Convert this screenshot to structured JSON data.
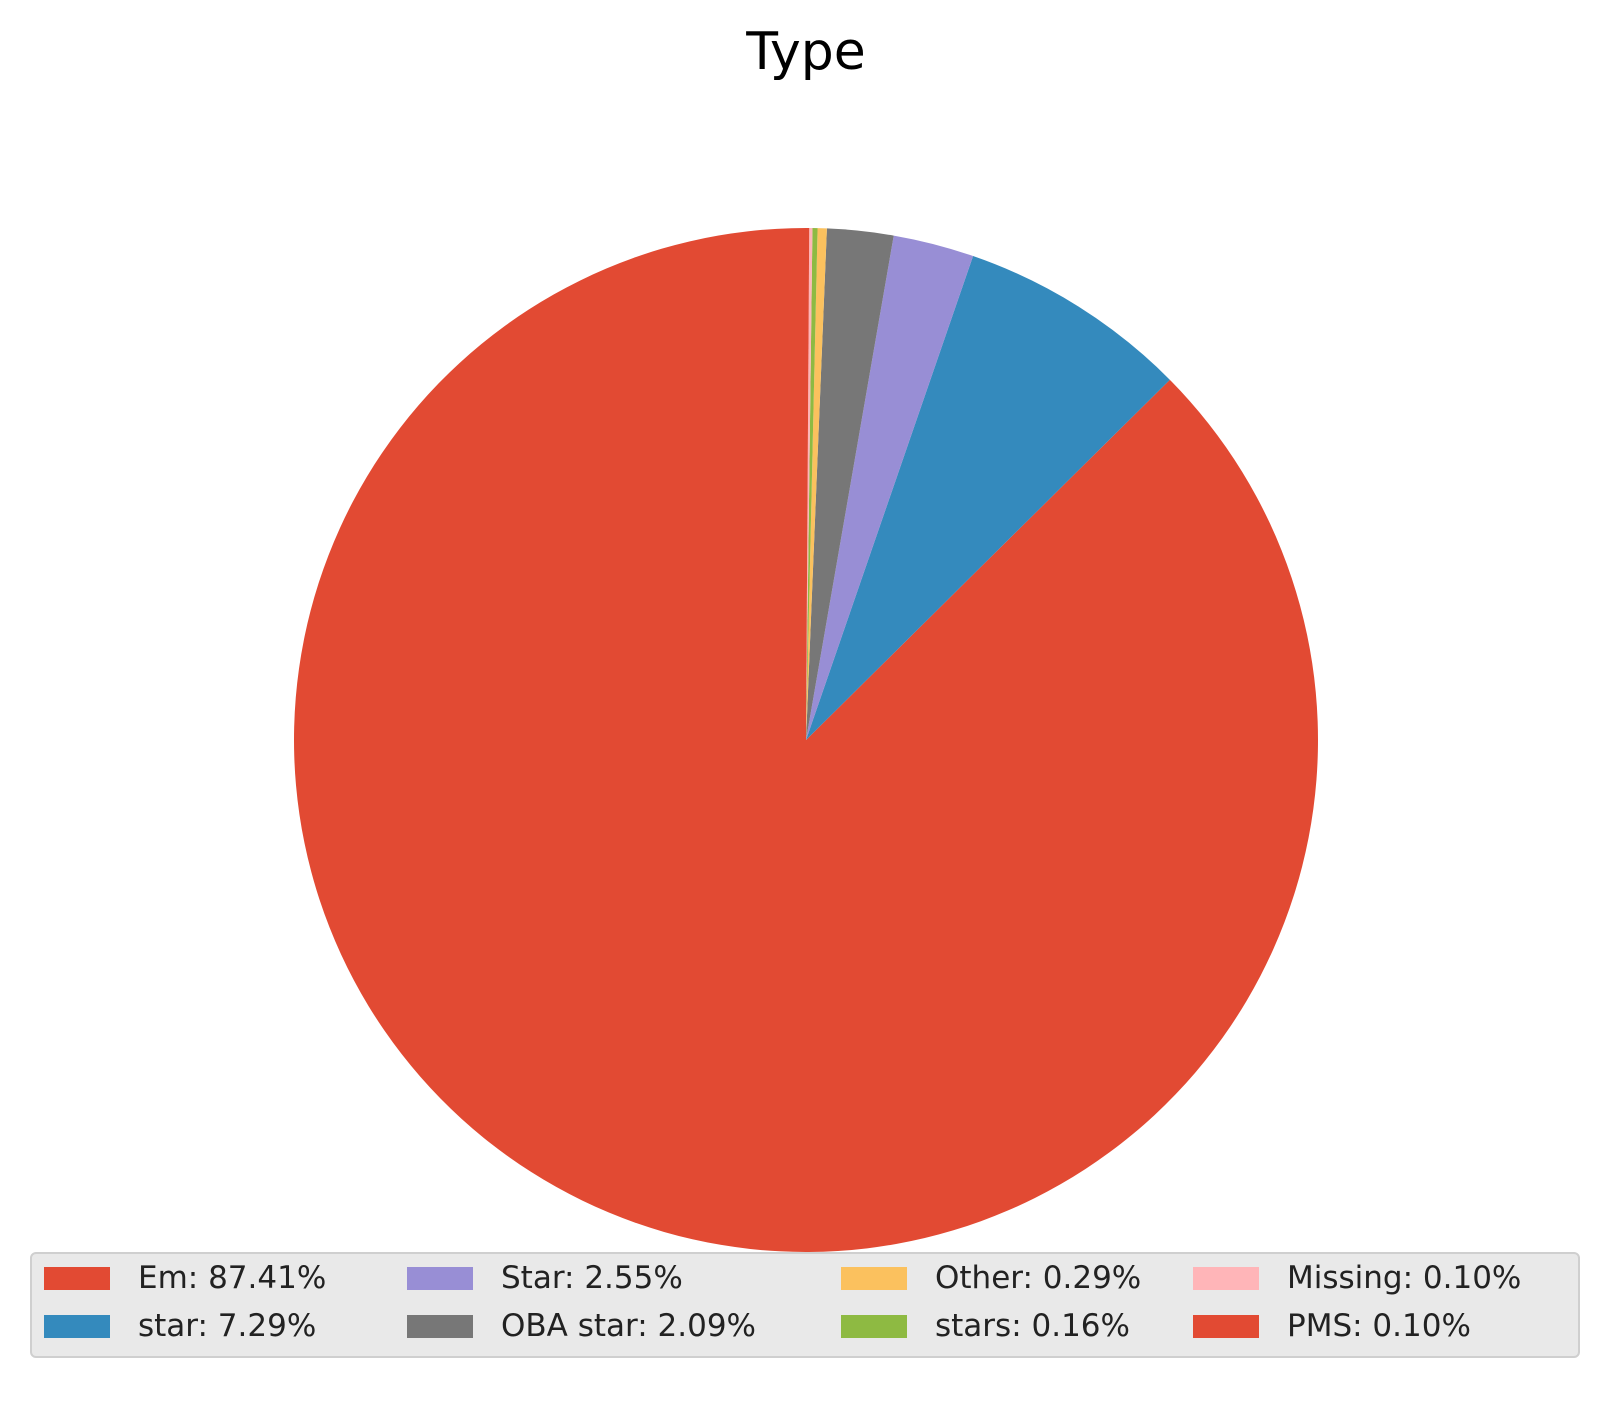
{
  "chart_data": {
    "type": "pie",
    "title": "Type",
    "start_angle_deg": 90,
    "direction": "counterclockwise",
    "legend_placement": "bottom",
    "legend_columns": 4,
    "slices": [
      {
        "label": "Em",
        "value": 87.41,
        "legend_text": "Em: 87.41%",
        "color": "#E24A33"
      },
      {
        "label": "star",
        "value": 7.29,
        "legend_text": "star: 7.29%",
        "color": "#348ABD"
      },
      {
        "label": "Star",
        "value": 2.55,
        "legend_text": "Star: 2.55%",
        "color": "#988ED5"
      },
      {
        "label": "OBA star",
        "value": 2.09,
        "legend_text": "OBA star: 2.09%",
        "color": "#777777"
      },
      {
        "label": "Other",
        "value": 0.29,
        "legend_text": "Other: 0.29%",
        "color": "#FBC15E"
      },
      {
        "label": "stars",
        "value": 0.16,
        "legend_text": "stars: 0.16%",
        "color": "#8EBA42"
      },
      {
        "label": "Missing",
        "value": 0.1,
        "legend_text": "Missing: 0.10%",
        "color": "#FFB5B8"
      },
      {
        "label": "PMS",
        "value": 0.1,
        "legend_text": "PMS: 0.10%",
        "color": "#E24A33"
      }
    ]
  }
}
